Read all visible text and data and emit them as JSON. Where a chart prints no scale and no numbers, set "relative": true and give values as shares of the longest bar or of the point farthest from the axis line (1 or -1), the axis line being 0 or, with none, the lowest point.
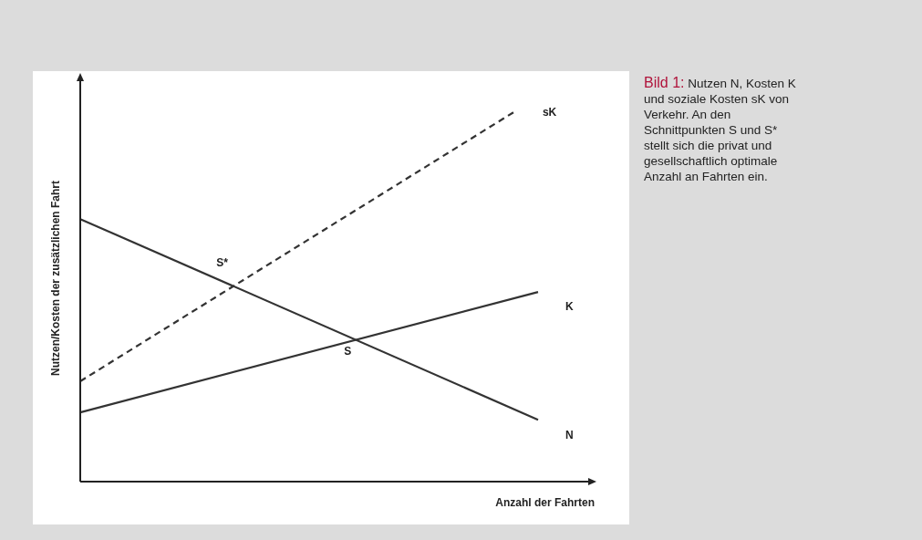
{
  "chart_data": {
    "type": "line",
    "relative": true,
    "title": "Bild 1:",
    "xlabel": "Anzahl der Fahrten",
    "ylabel": "Nutzen/Kosten der zusätzlichen Fahrt",
    "categories": [
      null,
      null,
      null,
      null,
      null,
      null,
      null,
      null,
      null,
      null,
      null,
      null,
      null,
      null,
      null,
      null,
      null,
      null,
      null,
      null,
      null
    ],
    "series": [
      {
        "name": "N",
        "color": "#333333",
        "values": [
          0.709,
          null,
          null,
          null,
          null,
          null,
          null,
          null,
          null,
          null,
          null,
          null,
          null,
          null,
          null,
          null,
          null,
          null,
          null,
          null,
          0.167
        ]
      },
      {
        "name": "K",
        "color": "#333333",
        "values": [
          0.187,
          null,
          null,
          null,
          null,
          null,
          null,
          null,
          null,
          null,
          null,
          null,
          null,
          null,
          null,
          null,
          null,
          null,
          null,
          null,
          0.512
        ]
      },
      {
        "name": "sK",
        "color": "#333333",
        "line_style": "dashed",
        "values": [
          0.271,
          null,
          null,
          null,
          null,
          null,
          null,
          null,
          null,
          null,
          null,
          null,
          null,
          null,
          null,
          null,
          null,
          null,
          null,
          1,
          null
        ]
      }
    ],
    "annotations": [
      "S*",
      "S",
      "Nutzen N, Kosten K und soziale Kosten sK von Verkehr. An den Schnittpunkten S und S* stellt sich die privat und gesellschaftlich optimale Anzahl an Fahrten ein."
    ],
    "legend": false,
    "marker": "none"
  }
}
